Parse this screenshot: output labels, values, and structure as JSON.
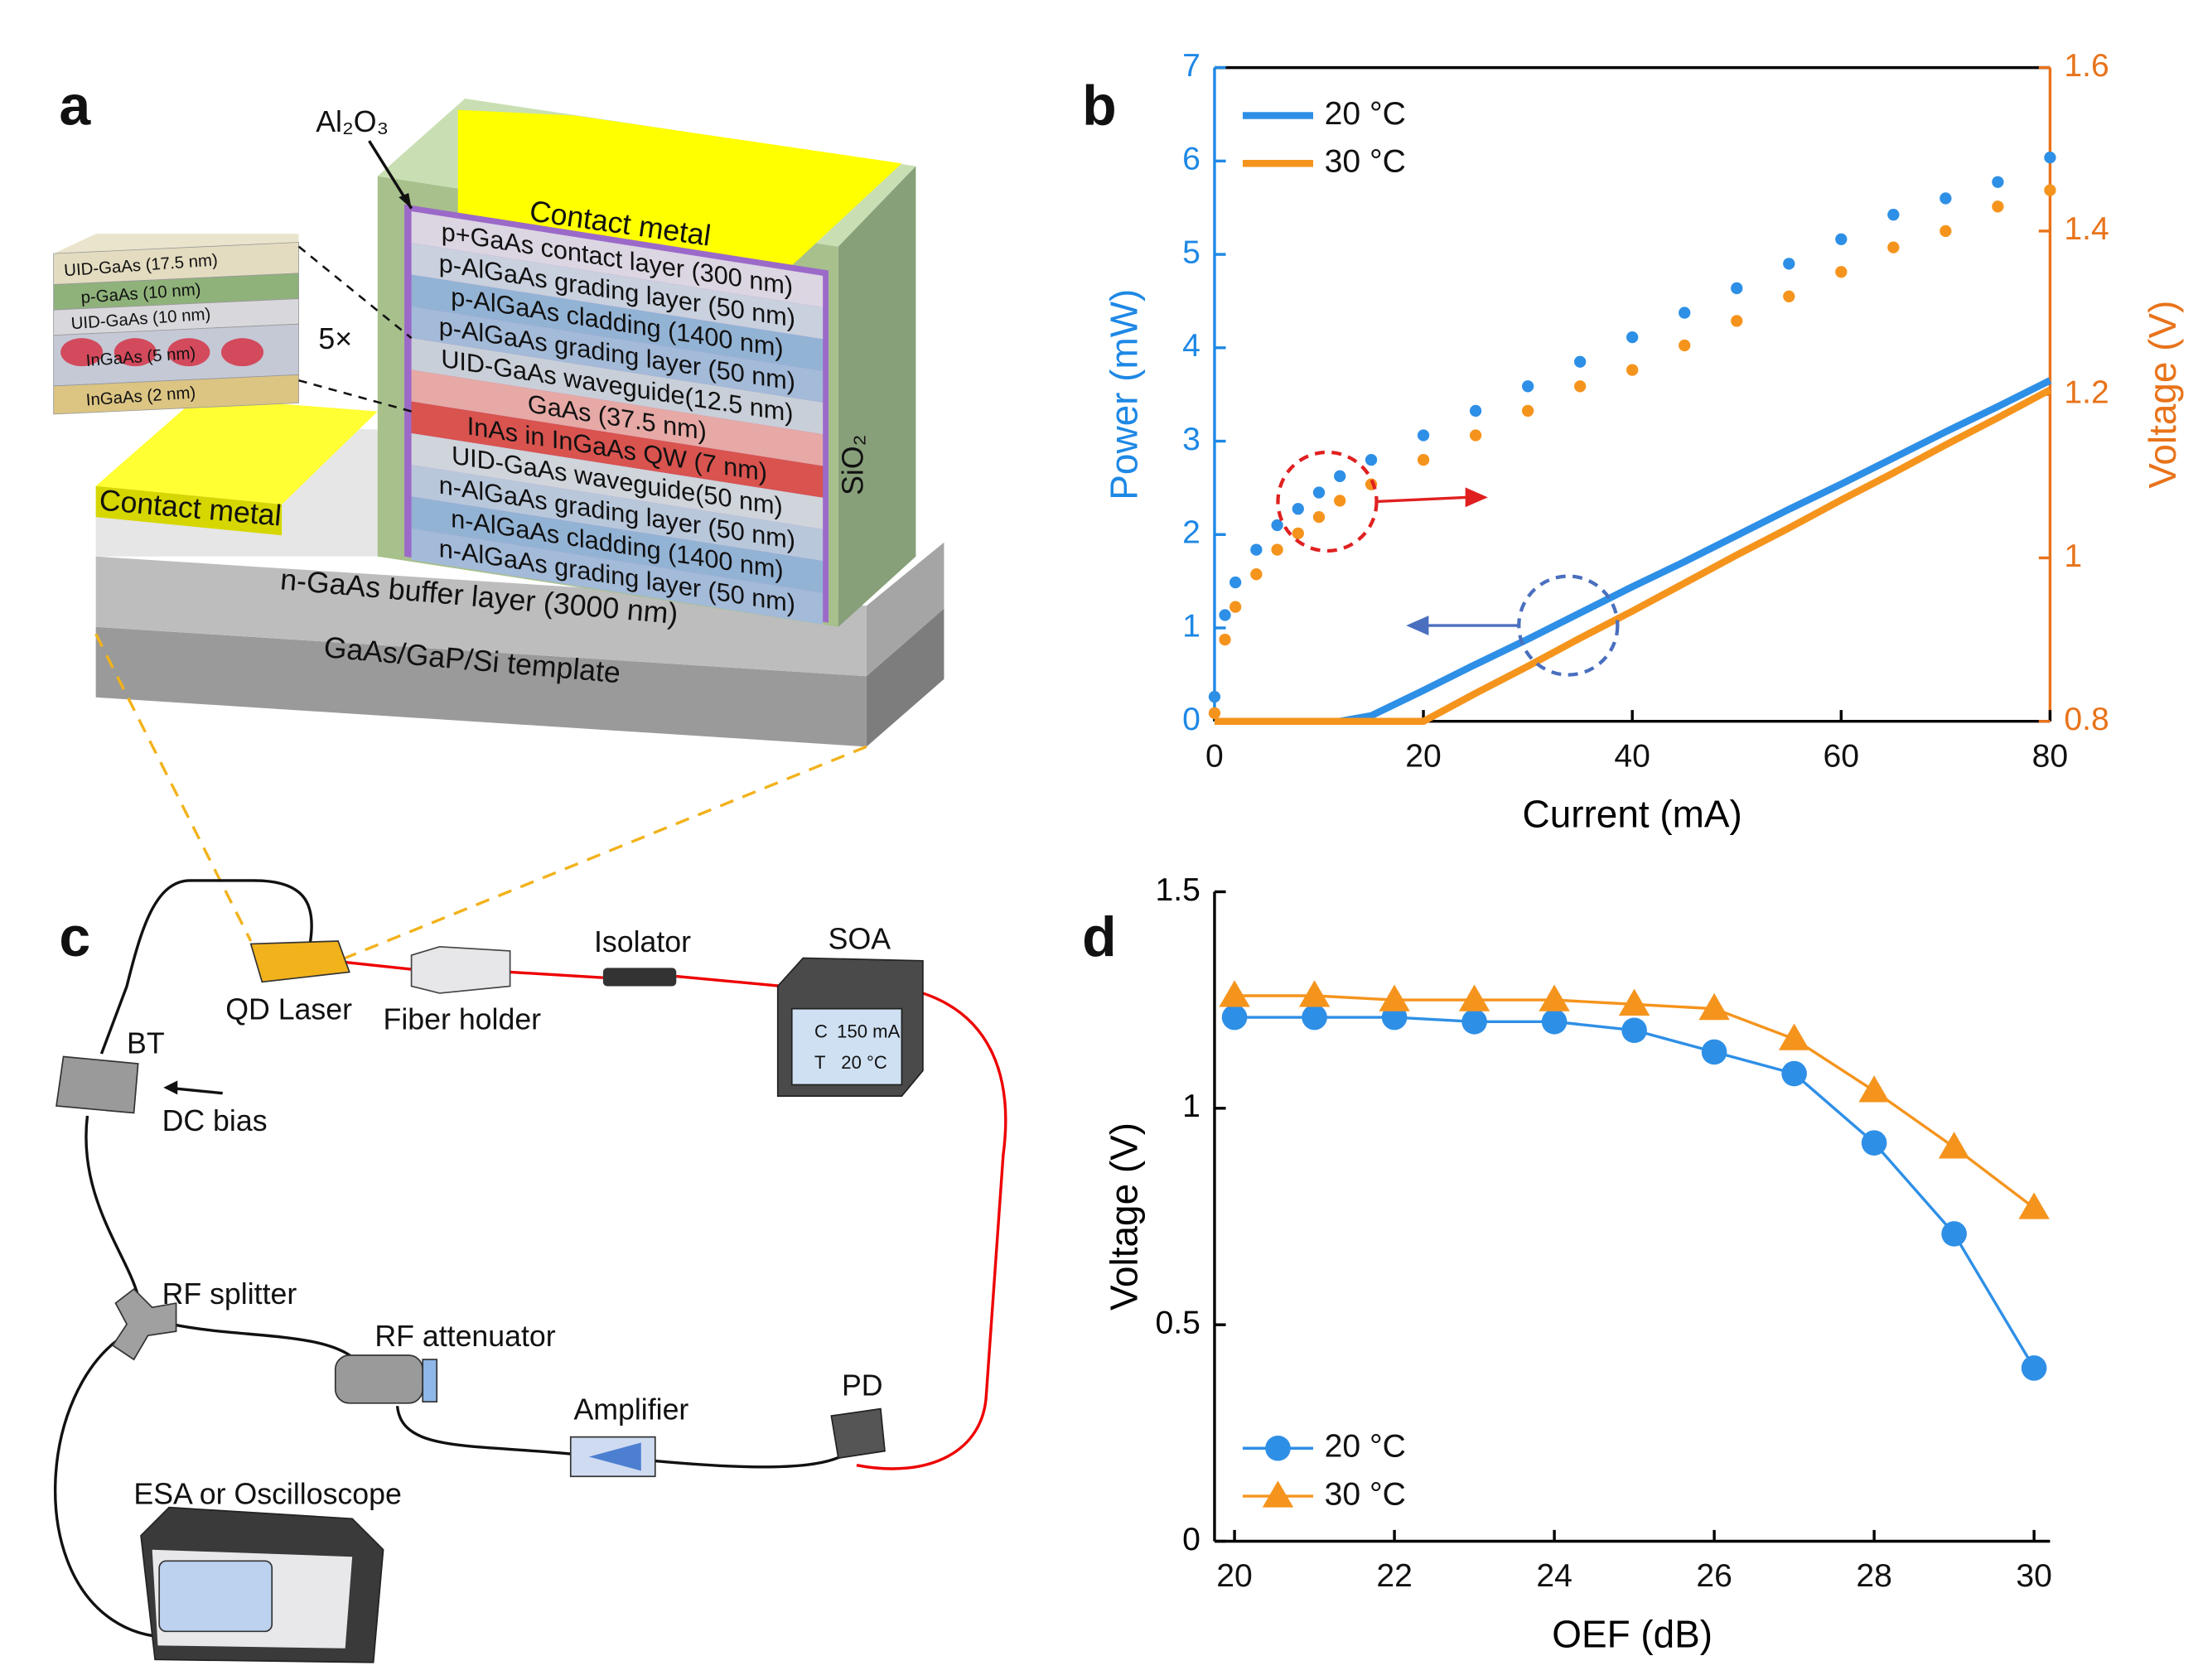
{
  "panel_labels": [
    "a",
    "b",
    "c",
    "d"
  ],
  "structure": {
    "oxide": "Al₂O₃",
    "top_contact": "Contact metal",
    "side_contact": "Contact metal",
    "passivation": "SiO₂",
    "buffer": "n-GaAs buffer layer (3000 nm)",
    "template": "GaAs/GaP/Si template",
    "repeat": "5×",
    "layers": [
      {
        "label": "p+GaAs contact layer (300 nm)",
        "color": "#dcd5e2"
      },
      {
        "label": "p-AlGaAs grading layer (50 nm)",
        "color": "#c9d0de"
      },
      {
        "label": "p-AlGaAs cladding (1400 nm)",
        "color": "#93b3d5"
      },
      {
        "label": "p-AlGaAs grading layer (50 nm)",
        "color": "#a3bad8"
      },
      {
        "label": "UID-GaAs waveguide(12.5 nm)",
        "color": "#c9cfd8"
      },
      {
        "label": "GaAs (37.5  nm)",
        "color": "#e6a9a6"
      },
      {
        "label": "InAs in InGaAs QW (7 nm)",
        "color": "#d9534f"
      },
      {
        "label": "UID-GaAs waveguide(50 nm)",
        "color": "#d0d4db"
      },
      {
        "label": "n-AlGaAs grading layer (50 nm)",
        "color": "#b9c7db"
      },
      {
        "label": "n-AlGaAs cladding (1400 nm)",
        "color": "#93b3d5"
      },
      {
        "label": "n-AlGaAs grading layer (50 nm)",
        "color": "#a3bad8"
      }
    ],
    "inset_layers": [
      {
        "label": "UID-GaAs (17.5 nm)",
        "color": "#e3dcc0"
      },
      {
        "label": "p-GaAs (10 nm)",
        "color": "#8fb27a"
      },
      {
        "label": "UID-GaAs (10 nm)",
        "color": "#d8d8dc"
      },
      {
        "label": "InGaAs (5 nm)",
        "color": "#c5c9d6"
      },
      {
        "label": "InGaAs (2 nm)",
        "color": "#dcc583"
      }
    ]
  },
  "setup": {
    "qd_laser": "QD Laser",
    "fiber_holder": "Fiber holder",
    "isolator": "Isolator",
    "soa": "SOA",
    "soa_c": "C",
    "soa_current": "150 mA",
    "soa_t": "T",
    "soa_temp": "20 °C",
    "bt": "BT",
    "dc_bias": "DC bias",
    "rf_splitter": "RF splitter",
    "rf_attenuator": "RF attenuator",
    "amplifier": "Amplifier",
    "pd": "PD",
    "esa": "ESA or Oscilloscope"
  },
  "chart_data": [
    {
      "type": "line",
      "xlabel": "Current (mA)",
      "ylabel": "Power (mW)",
      "y2label": "Voltage (V)",
      "axis_colors": {
        "x": "#000000",
        "y": "#1e88e5",
        "y2": "#e8731a"
      },
      "x": [
        0,
        1,
        2,
        4,
        6,
        8,
        10,
        12,
        15,
        20,
        25,
        30,
        35,
        40,
        45,
        50,
        55,
        60,
        65,
        70,
        75,
        80
      ],
      "xlim": [
        0,
        80
      ],
      "xticks": [
        0,
        20,
        40,
        60,
        80
      ],
      "ylim": [
        0,
        7
      ],
      "yticks": [
        0,
        1,
        2,
        3,
        4,
        5,
        6,
        7
      ],
      "y2lim": [
        0.8,
        1.6
      ],
      "y2ticks": [
        0.8,
        1,
        1.2,
        1.4,
        1.6
      ],
      "legend": "upper left",
      "series": [
        {
          "name": "20 °C",
          "color": "#2e8fe6",
          "style": "line",
          "values": [
            0,
            0,
            0,
            0,
            0,
            0,
            0,
            0,
            0.06,
            0.33,
            0.61,
            0.88,
            1.16,
            1.44,
            1.71,
            1.99,
            2.27,
            2.54,
            2.82,
            3.1,
            3.37,
            3.65
          ]
        },
        {
          "name": "30 °C",
          "color": "#f5941d",
          "style": "line",
          "values": [
            0,
            0,
            0,
            0,
            0,
            0,
            0,
            0,
            0,
            0,
            0.3,
            0.59,
            0.89,
            1.18,
            1.48,
            1.78,
            2.07,
            2.37,
            2.66,
            2.96,
            3.25,
            3.55
          ]
        },
        {
          "color": "#2e8fe6",
          "style": "dot",
          "axis": "y2",
          "values": [
            0.83,
            0.93,
            0.97,
            1.01,
            1.04,
            1.06,
            1.08,
            1.1,
            1.12,
            1.15,
            1.18,
            1.21,
            1.24,
            1.27,
            1.3,
            1.33,
            1.36,
            1.39,
            1.42,
            1.44,
            1.46,
            1.49
          ]
        },
        {
          "color": "#f5941d",
          "style": "dot",
          "axis": "y2",
          "values": [
            0.81,
            0.9,
            0.94,
            0.98,
            1.01,
            1.03,
            1.05,
            1.07,
            1.09,
            1.12,
            1.15,
            1.18,
            1.21,
            1.23,
            1.26,
            1.29,
            1.32,
            1.35,
            1.38,
            1.4,
            1.43,
            1.45
          ]
        }
      ]
    },
    {
      "type": "line",
      "xlabel": "OEF (dB)",
      "ylabel": "Voltage (V)",
      "axis_colors": {
        "x": "#000000",
        "y": "#000000"
      },
      "x": [
        20,
        21,
        22,
        23,
        24,
        25,
        26,
        27,
        28,
        29,
        30
      ],
      "xlim": [
        19.75,
        30.2
      ],
      "xticks": [
        20,
        22,
        24,
        26,
        28,
        30
      ],
      "ylim": [
        0,
        1.5
      ],
      "yticks": [
        0,
        0.5,
        1,
        1.5
      ],
      "legend": "lower left",
      "series": [
        {
          "name": "20 °C",
          "color": "#2e8fe6",
          "style": "line-marker",
          "marker": "circle",
          "values": [
            1.21,
            1.21,
            1.21,
            1.2,
            1.2,
            1.18,
            1.13,
            1.08,
            0.92,
            0.71,
            0.4
          ]
        },
        {
          "name": "30 °C",
          "color": "#f5941d",
          "style": "line-marker",
          "marker": "triangle",
          "values": [
            1.26,
            1.26,
            1.25,
            1.25,
            1.25,
            1.24,
            1.23,
            1.16,
            1.04,
            0.91,
            0.77
          ]
        }
      ]
    }
  ]
}
